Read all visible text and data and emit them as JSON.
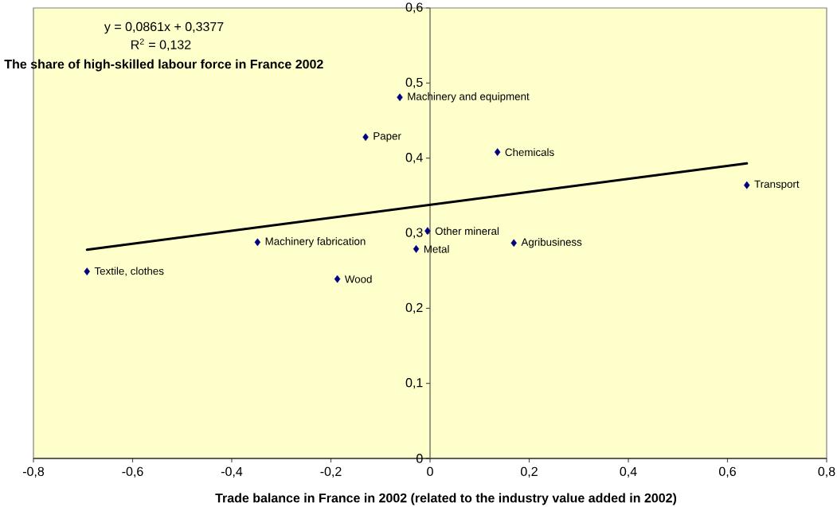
{
  "chart_data": {
    "type": "scatter",
    "xlabel": "Trade balance in France in 2002 (related to the industry value added in 2002)",
    "ylabel": "The share of high-skilled labour force in France 2002",
    "annotations": [
      "y = 0,0861x + 0,3377",
      "R$^{2}$ = 0,132"
    ],
    "xlim": [
      -0.8,
      0.8
    ],
    "ylim": [
      0,
      0.6
    ],
    "xticks": [
      {
        "value": -0.8,
        "label": "-0,8"
      },
      {
        "value": -0.6,
        "label": "-0,6"
      },
      {
        "value": -0.4,
        "label": "-0,4"
      },
      {
        "value": -0.2,
        "label": "-0,2"
      },
      0,
      {
        "value": 0.2,
        "label": "0,2"
      },
      {
        "value": 0.4,
        "label": "0,4"
      },
      {
        "value": 0.6,
        "label": "0,6"
      },
      {
        "value": 0.8,
        "label": "0,8"
      }
    ],
    "yticks": [
      0,
      {
        "value": 0.1,
        "label": "0,1"
      },
      {
        "value": 0.2,
        "label": "0,2"
      },
      {
        "value": 0.3,
        "label": "0,3"
      },
      {
        "value": 0.4,
        "label": "0,4"
      },
      {
        "value": 0.5,
        "label": "0,5"
      },
      {
        "value": 0.6,
        "label": "0,6"
      }
    ],
    "marker": "diamond",
    "series": [
      {
        "name": "Textile, clothes",
        "color": "#000080",
        "x": [
          -0.692
        ],
        "values": [
          0.249
        ]
      },
      {
        "name": "Machinery fabrication",
        "color": "#000080",
        "x": [
          -0.348
        ],
        "values": [
          0.288
        ]
      },
      {
        "name": "Wood",
        "color": "#000080",
        "x": [
          -0.187
        ],
        "values": [
          0.239
        ]
      },
      {
        "name": "Paper",
        "color": "#000080",
        "x": [
          -0.13
        ],
        "values": [
          0.428
        ]
      },
      {
        "name": "Machinery and equipment",
        "color": "#000080",
        "x": [
          -0.061
        ],
        "values": [
          0.481
        ]
      },
      {
        "name": "Metal",
        "color": "#000080",
        "x": [
          -0.028
        ],
        "values": [
          0.279
        ]
      },
      {
        "name": "Other mineral",
        "color": "#000080",
        "x": [
          -0.005
        ],
        "values": [
          0.303
        ]
      },
      {
        "name": "Chemicals",
        "color": "#000080",
        "x": [
          0.136
        ],
        "values": [
          0.408
        ]
      },
      {
        "name": "Agribusiness",
        "color": "#000080",
        "x": [
          0.169
        ],
        "values": [
          0.287
        ]
      },
      {
        "name": "Transport",
        "color": "#000080",
        "x": [
          0.639
        ],
        "values": [
          0.364
        ]
      },
      {
        "type": "line",
        "color": "#000000",
        "x": [
          -0.692,
          0.639
        ],
        "values": [
          0.278,
          0.393
        ],
        "marker": "none",
        "line_style": "solid"
      }
    ]
  }
}
